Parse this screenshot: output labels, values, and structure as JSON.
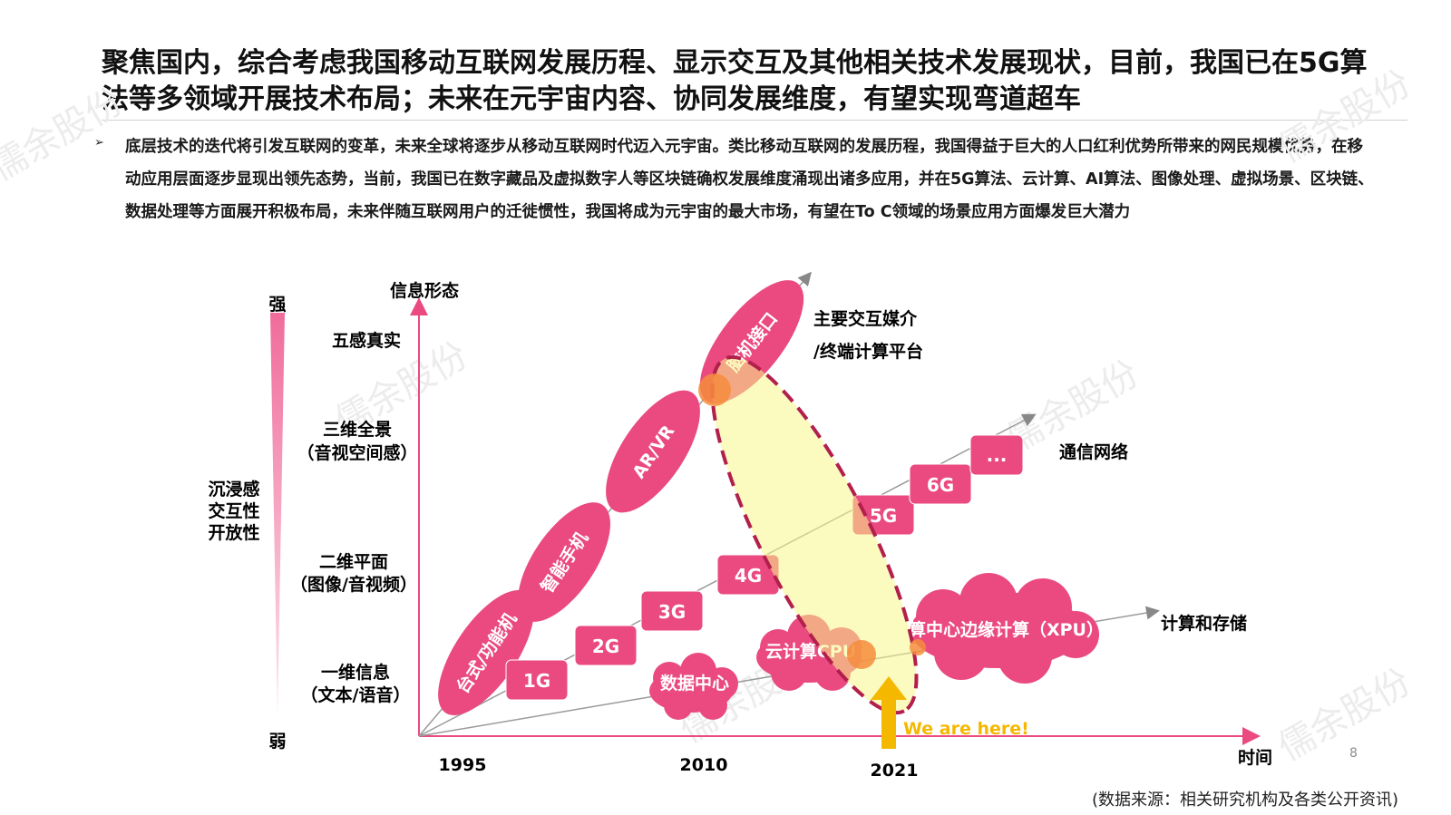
{
  "title": "聚焦国内，综合考虑我国移动互联网发展历程、显示交互及其他相关技术发展现状，目前，我国已在5G算法等多领域开展技术布局；未来在元宇宙内容、协同发展维度，有望实现弯道超车",
  "body": "底层技术的迭代将引发互联网的变革，未来全球将逐步从移动互联网时代迈入元宇宙。类比移动互联网的发展历程，我国得益于巨大的人口红利优势所带来的网民规模优势，在移动应用层面逐步显现出领先态势，当前，我国已在数字藏品及虚拟数字人等区块链确权发展维度涌现出诸多应用，并在5G算法、云计算、AI算法、图像处理、虚拟场景、区块链、数据处理等方面展开积极布局，未来伴随互联网用户的迁徙惯性，我国将成为元宇宙的最大市场，有望在To C领域的场景应用方面爆发巨大潜力",
  "bullet_symbol": "➢",
  "diagram": {
    "y_axis_label": "信息形态",
    "x_axis_label": "时间",
    "strength_top": "强",
    "strength_bottom": "弱",
    "side_label": [
      "沉浸感",
      "交互性",
      "开放性"
    ],
    "levels": [
      [
        "五感真实"
      ],
      [
        "三维全景",
        "（音视空间感）"
      ],
      [
        "二维平面",
        "（图像/音视频）"
      ],
      [
        "一维信息",
        "（文本/语音）"
      ]
    ],
    "years": [
      "1995",
      "2010",
      "2021"
    ],
    "terminals": [
      "台式/功能机",
      "智能手机",
      "AR/VR",
      "脑机接口"
    ],
    "networks": [
      "1G",
      "2G",
      "3G",
      "4G",
      "5G",
      "6G",
      "..."
    ],
    "compute": [
      "数据中心",
      "云计算CPU",
      "智算中心边缘计算（XPU）"
    ],
    "track_labels": {
      "terminals": [
        "主要交互媒介",
        "/终端计算平台"
      ],
      "networks": "通信网络",
      "compute": "计算和存储"
    },
    "here_label": "We are here!",
    "colors": {
      "accent": "#ea4a7f",
      "highlight": "#f7f58a",
      "outline": "#b21f4d",
      "arrow": "#f5b800",
      "here_text": "#f5b800"
    }
  },
  "page_number": "8",
  "source": "(数据来源：相关研究机构及各类公开资讯)",
  "watermark": "儒余股份"
}
